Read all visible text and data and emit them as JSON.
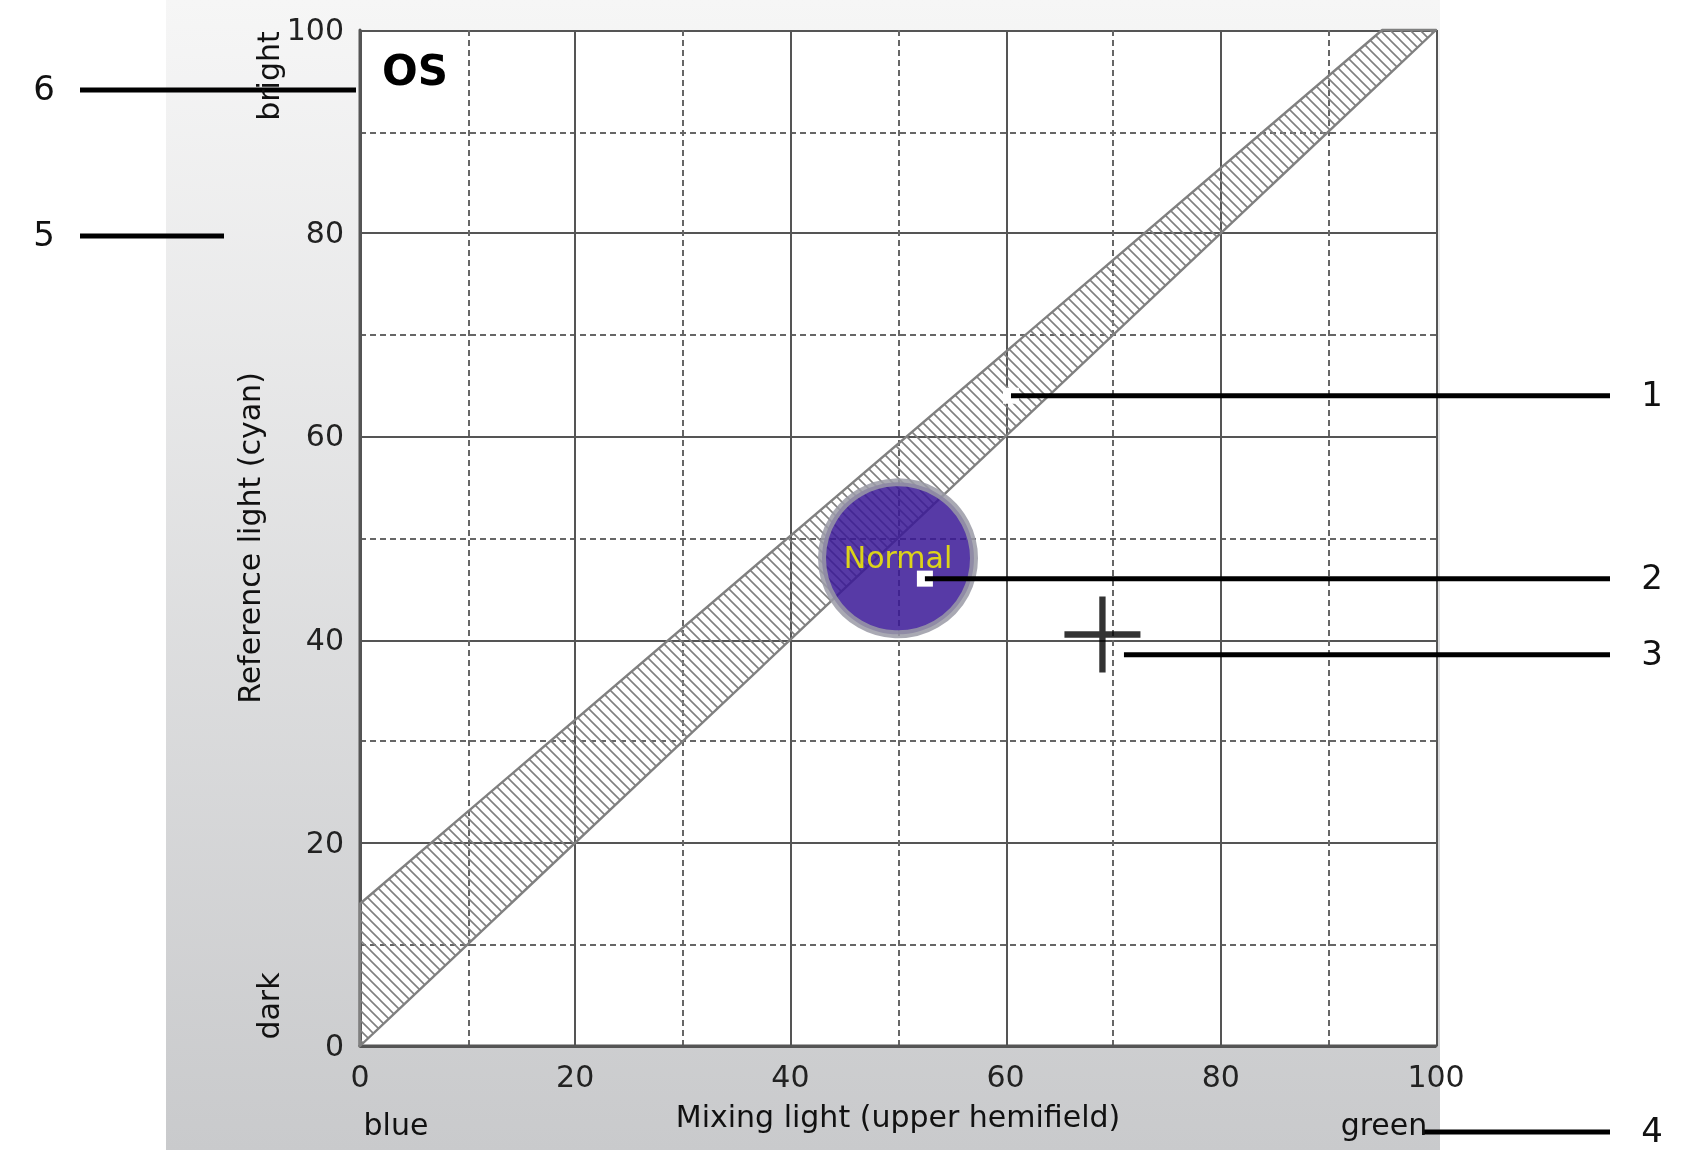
{
  "chart_data": {
    "type": "scatter",
    "title": "OS",
    "xlabel": "Mixing light (upper hemifield)",
    "ylabel": "Reference light (cyan)",
    "xlim": [
      0,
      100
    ],
    "ylim": [
      0,
      100
    ],
    "xticks": [
      0,
      20,
      40,
      60,
      80,
      100
    ],
    "yticks": [
      0,
      20,
      40,
      60,
      80,
      100
    ],
    "grid": true,
    "series": [
      {
        "type": "line",
        "color": "#808080",
        "x": [
          0,
          95,
          100
        ],
        "values": [
          null,
          null,
          null
        ],
        "lower": [
          0,
          95,
          100
        ],
        "upper": [
          14,
          100,
          100
        ]
      },
      {
        "name": "Normal",
        "color": "#3a1896",
        "marker": "circle",
        "x": [
          50
        ],
        "values": [
          48
        ]
      },
      {
        "color": "#000000",
        "marker": "cross",
        "x": [
          69
        ],
        "values": [
          40.5
        ]
      }
    ],
    "annotations": [
      {
        "text": "1",
        "x": 60.5,
        "y": 64
      },
      {
        "text": "2",
        "x": 52.5,
        "y": 46
      },
      {
        "text": "3",
        "x": 71,
        "y": 38.5
      },
      "4",
      "5",
      "6",
      "bright",
      "dark",
      "blue",
      "green"
    ]
  }
}
